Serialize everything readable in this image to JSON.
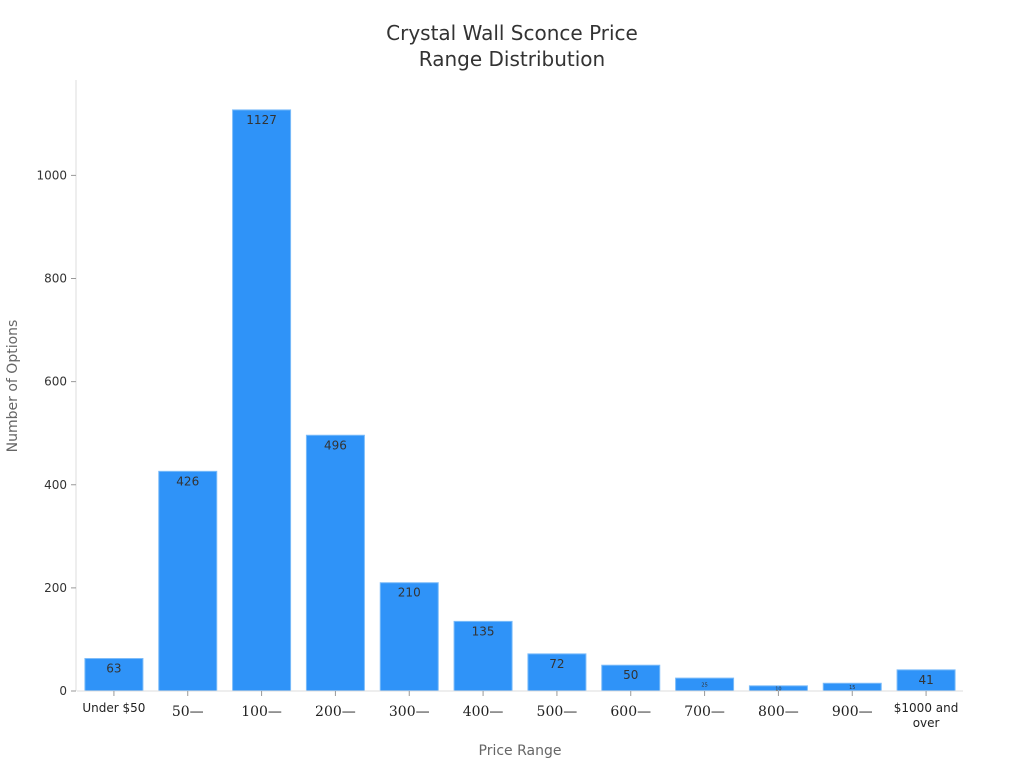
{
  "chart_data": {
    "type": "bar",
    "title": "Crystal Wall Sconce Price Range Distribution",
    "title_lines": [
      "Crystal Wall Sconce Price",
      "Range Distribution"
    ],
    "xlabel": "Price Range",
    "ylabel": "Number of Options",
    "categories": [
      "Under $50",
      "50—",
      "100—",
      "200—",
      "300—",
      "400—",
      "500—",
      "600—",
      "700—",
      "800—",
      "900—",
      "$1000 and over"
    ],
    "values": [
      63,
      426,
      1127,
      496,
      210,
      135,
      72,
      50,
      25,
      10,
      15,
      41
    ],
    "ylim": [
      0,
      1185
    ],
    "yticks": [
      0,
      200,
      400,
      600,
      800,
      1000
    ],
    "grid": false,
    "bar_color": "#2f93f8"
  }
}
